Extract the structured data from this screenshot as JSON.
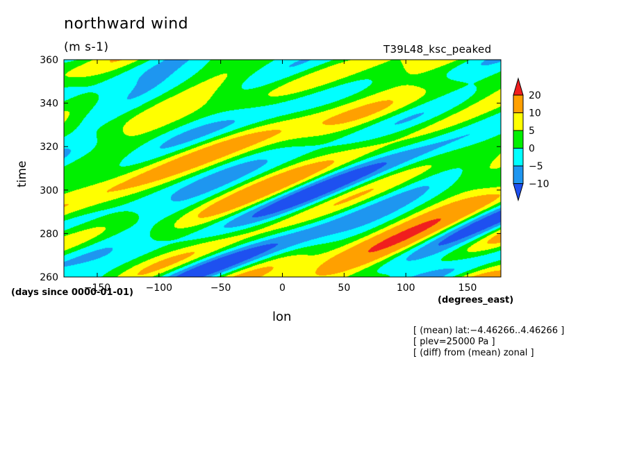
{
  "chart_data": {
    "type": "heatmap",
    "title": "northward wind",
    "units": "(m s-1)",
    "run_label": "T39L48_ksc_peaked",
    "xlabel": "lon",
    "ylabel": "time",
    "x_units": "(degrees_east)",
    "y_units": "(days since 0000-01-01)",
    "xlim": [
      -177,
      177
    ],
    "ylim": [
      260,
      360
    ],
    "x_ticks": [
      -150,
      -100,
      -50,
      0,
      50,
      100,
      150
    ],
    "x_tick_labels": [
      "−150",
      "−100",
      "−50",
      "0",
      "50",
      "100",
      "150"
    ],
    "y_ticks": [
      260,
      280,
      300,
      320,
      340,
      360
    ],
    "y_tick_labels": [
      "260",
      "280",
      "300",
      "320",
      "340",
      "360"
    ],
    "levels": [
      -10,
      -5,
      0,
      5,
      10,
      20
    ],
    "level_labels": [
      "−10",
      "−5",
      "0",
      "5",
      "10",
      "20"
    ],
    "colors": {
      "below_minus10": "#1e50f0",
      "minus10_to_minus5": "#1e96f0",
      "minus5_to_0": "#00ffff",
      "0_to_5": "#00f000",
      "5_to_10": "#ffff00",
      "10_to_20": "#ffa000",
      "above_20": "#f01e1e"
    },
    "pattern": "eastward-propagating tilted bands of alternating positive and negative anomalies"
  },
  "notes": [
    "[ (mean) lat:−4.46266..4.46266 ]",
    "[ plev=25000 Pa ]",
    "[ (diff) from (mean) zonal ]"
  ]
}
